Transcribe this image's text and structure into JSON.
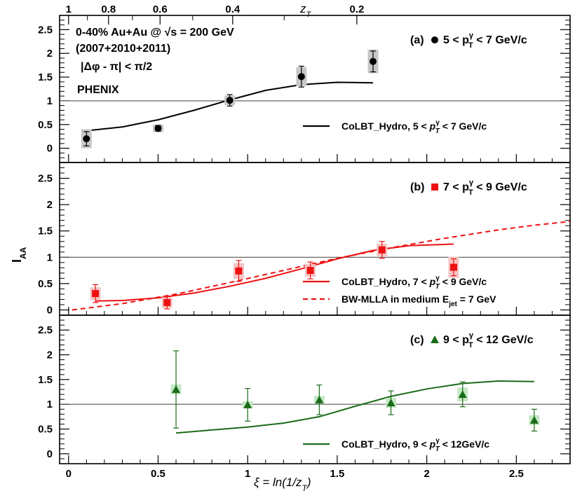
{
  "chart_data": {
    "type": "scatter",
    "ylabel": "I",
    "ylabel_sub": "AA",
    "xlabel": "ξ = ln(1/z",
    "xlabel_sub": "T",
    "xlabel_end": ")",
    "top_axis_label": "z",
    "top_axis_label_sub": "T",
    "xlim": [
      -0.05,
      2.8
    ],
    "x_ticks": [
      {
        "v": 0,
        "label": "0"
      },
      {
        "v": 0.5,
        "label": "0.5"
      },
      {
        "v": 1,
        "label": "1"
      },
      {
        "v": 1.5,
        "label": "1.5"
      },
      {
        "v": 2,
        "label": "2"
      },
      {
        "v": 2.5,
        "label": "2.5"
      }
    ],
    "top_ticks": [
      {
        "z": 1,
        "label": "1"
      },
      {
        "z": 0.8,
        "label": "0.8"
      },
      {
        "z": 0.6,
        "label": "0.6"
      },
      {
        "z": 0.4,
        "label": "0.4"
      },
      {
        "z": 0.2,
        "label": "0.2"
      }
    ],
    "y_ticks": [
      {
        "v": 0,
        "label": "0"
      },
      {
        "v": 0.5,
        "label": "0.5"
      },
      {
        "v": 1,
        "label": "1"
      },
      {
        "v": 1.5,
        "label": "1.5"
      },
      {
        "v": 2,
        "label": "2"
      },
      {
        "v": 2.5,
        "label": "2.5"
      }
    ],
    "panels": [
      {
        "id": "a",
        "ylim": [
          -0.3,
          2.8
        ],
        "annotations": [
          {
            "text": "0-40% Au+Au @ √s = 200 GeV",
            "pos": "top-left",
            "line": 0
          },
          {
            "text": "(2007+2010+2011)",
            "pos": "top-left",
            "line": 1
          },
          {
            "text": "|Δφ - π| < π/2",
            "pos": "top-left",
            "line": 2
          },
          {
            "text": "PHENIX",
            "pos": "top-left",
            "line": 3
          }
        ],
        "label": "(a)",
        "range_text": {
          "lo": "5 <",
          "p": "p",
          "sup": "γ",
          "sub": "T",
          "hi": "< 7 GeV/c"
        },
        "marker": "circle",
        "color": "#000000",
        "band_color": "#c8c8c8",
        "points": [
          {
            "x": 0.1,
            "y": 0.2,
            "err": 0.15,
            "sys": 0.2
          },
          {
            "x": 0.5,
            "y": 0.42,
            "err": 0.06,
            "sys": 0.08
          },
          {
            "x": 0.9,
            "y": 1.01,
            "err": 0.12,
            "sys": 0.1
          },
          {
            "x": 1.3,
            "y": 1.51,
            "err": 0.22,
            "sys": 0.2
          },
          {
            "x": 1.7,
            "y": 1.83,
            "err": 0.22,
            "sys": 0.25
          }
        ],
        "curves": [
          {
            "name": "CoLBT_Hydro, 5 < p_T^γ < 7 GeV/c",
            "style": "solid",
            "x": [
              0.1,
              0.3,
              0.5,
              0.7,
              0.9,
              1.1,
              1.3,
              1.5,
              1.7
            ],
            "y": [
              0.37,
              0.45,
              0.6,
              0.8,
              1.02,
              1.22,
              1.34,
              1.39,
              1.38
            ]
          }
        ],
        "legend": [
          {
            "text": "CoLBT_Hydro, 5 < ",
            "p": "p",
            "sup": "γ",
            "sub": "T",
            "tail": " < 7 GeV/c",
            "style": "solid"
          }
        ]
      },
      {
        "id": "b",
        "ylim": [
          -0.1,
          2.8
        ],
        "label": "(b)",
        "range_text": {
          "lo": "7 <",
          "p": "p",
          "sup": "γ",
          "sub": "T",
          "hi": "< 9 GeV/c"
        },
        "marker": "square",
        "color": "#ee1111",
        "band_color": "#f6c5c5",
        "points": [
          {
            "x": 0.15,
            "y": 0.31,
            "err": 0.17,
            "sys": 0.12
          },
          {
            "x": 0.55,
            "y": 0.14,
            "err": 0.12,
            "sys": 0.1
          },
          {
            "x": 0.95,
            "y": 0.74,
            "err": 0.2,
            "sys": 0.15
          },
          {
            "x": 1.35,
            "y": 0.75,
            "err": 0.16,
            "sys": 0.12
          },
          {
            "x": 1.75,
            "y": 1.14,
            "err": 0.16,
            "sys": 0.12
          },
          {
            "x": 2.15,
            "y": 0.81,
            "err": 0.16,
            "sys": 0.2
          }
        ],
        "curves": [
          {
            "name": "CoLBT_Hydro, 7 < p_T^γ < 9 GeV/c",
            "style": "solid",
            "x": [
              0.15,
              0.3,
              0.5,
              0.7,
              0.9,
              1.1,
              1.3,
              1.5,
              1.7,
              1.9,
              2.15
            ],
            "y": [
              0.17,
              0.18,
              0.23,
              0.32,
              0.45,
              0.6,
              0.78,
              0.97,
              1.13,
              1.22,
              1.25
            ]
          },
          {
            "name": "BW-MLLA in medium E_jet = 7 GeV",
            "style": "dashed",
            "x": [
              0.02,
              0.3,
              0.6,
              0.9,
              1.2,
              1.5,
              1.8,
              2.1,
              2.4,
              2.6,
              2.8
            ],
            "y": [
              0.0,
              0.12,
              0.3,
              0.52,
              0.75,
              0.98,
              1.18,
              1.36,
              1.52,
              1.61,
              1.68
            ]
          }
        ],
        "legend": [
          {
            "text": "CoLBT_Hydro, 7 < ",
            "p": "p",
            "sup": "γ",
            "sub": "T",
            "tail": " < 9 GeV/c",
            "style": "solid"
          },
          {
            "text": "BW-MLLA in medium E",
            "sub_only": "jet",
            "tail": " = 7 GeV",
            "style": "dashed"
          }
        ]
      },
      {
        "id": "c",
        "ylim": [
          -0.2,
          2.8
        ],
        "label": "(c)",
        "range_text": {
          "lo": "9 <",
          "p": "p",
          "sup": "γ",
          "sub": "T",
          "hi": "< 12 GeV/c"
        },
        "marker": "triangle",
        "color": "#1a6b1a",
        "band_color": "#c4e8c4",
        "points": [
          {
            "x": 0.6,
            "y": 1.3,
            "err": 0.78,
            "sys": 0.1
          },
          {
            "x": 1.0,
            "y": 0.99,
            "err": 0.33,
            "sys": 0.07
          },
          {
            "x": 1.4,
            "y": 1.09,
            "err": 0.3,
            "sys": 0.08
          },
          {
            "x": 1.8,
            "y": 1.03,
            "err": 0.24,
            "sys": 0.1
          },
          {
            "x": 2.2,
            "y": 1.2,
            "err": 0.25,
            "sys": 0.14
          },
          {
            "x": 2.6,
            "y": 0.68,
            "err": 0.22,
            "sys": 0.1
          }
        ],
        "curves": [
          {
            "name": "CoLBT_Hydro, 9 < p_T^γ < 12GeV/c",
            "style": "solid",
            "x": [
              0.6,
              0.8,
              1.0,
              1.2,
              1.4,
              1.6,
              1.8,
              2.0,
              2.2,
              2.4,
              2.6
            ],
            "y": [
              0.42,
              0.48,
              0.54,
              0.62,
              0.75,
              0.96,
              1.16,
              1.31,
              1.42,
              1.47,
              1.46
            ]
          }
        ],
        "legend": [
          {
            "text": "CoLBT_Hydro, 9 < ",
            "p": "p",
            "sup": "γ",
            "sub": "T",
            "tail": " < 12GeV/c",
            "style": "solid"
          }
        ]
      }
    ]
  }
}
